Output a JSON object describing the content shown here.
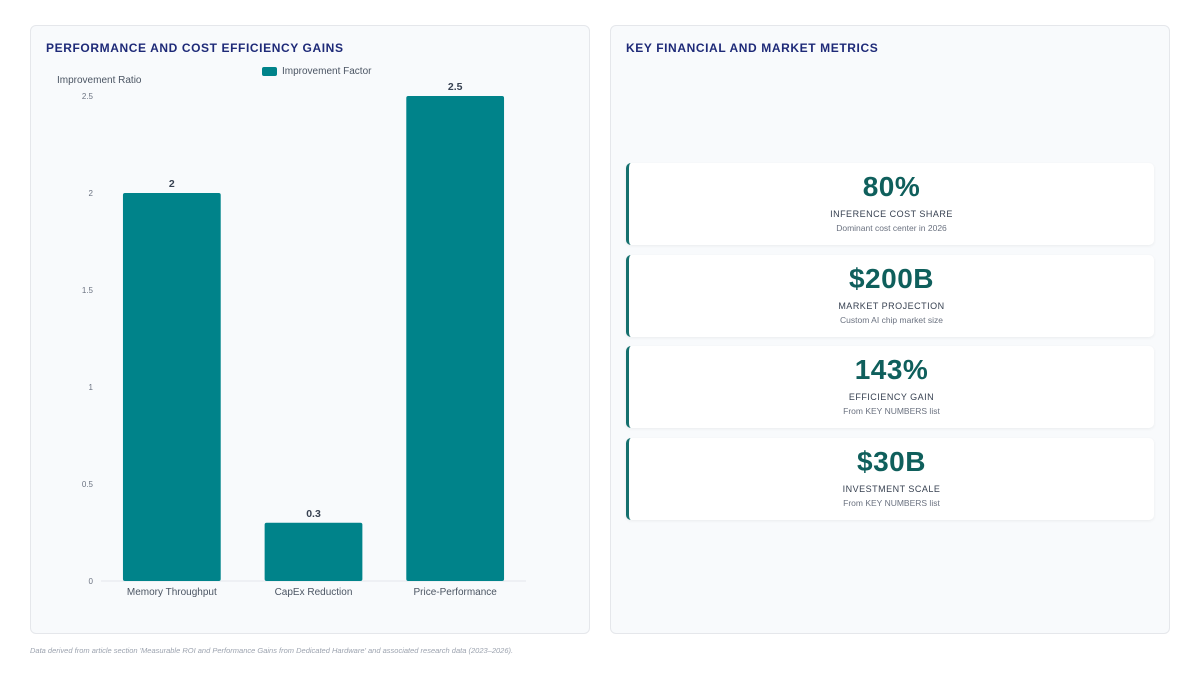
{
  "chart_panel": {
    "title": "PERFORMANCE AND COST EFFICIENCY GAINS"
  },
  "metrics_panel": {
    "title": "KEY FINANCIAL AND MARKET METRICS",
    "cards": [
      {
        "value": "80%",
        "label": "INFERENCE COST SHARE",
        "sub": "Dominant cost center in 2026"
      },
      {
        "value": "$200B",
        "label": "MARKET PROJECTION",
        "sub": "Custom AI chip market size"
      },
      {
        "value": "143%",
        "label": "EFFICIENCY GAIN",
        "sub": "From KEY NUMBERS list"
      },
      {
        "value": "$30B",
        "label": "INVESTMENT SCALE",
        "sub": "From KEY NUMBERS list"
      }
    ]
  },
  "chart_data": {
    "type": "bar",
    "title": "PERFORMANCE AND COST EFFICIENCY GAINS",
    "categories": [
      "Memory Throughput",
      "CapEx Reduction",
      "Price-Performance"
    ],
    "series": [
      {
        "name": "Improvement Factor",
        "values": [
          2,
          0.3,
          2.5
        ]
      }
    ],
    "data_labels": [
      "2",
      "0.3",
      "2.5"
    ],
    "ylabel": "Improvement Ratio",
    "xlabel": "",
    "ylim": [
      0,
      2.5
    ],
    "yticks": [
      "0",
      "0.5",
      "1",
      "1.5",
      "2",
      "2.5"
    ],
    "grid": false,
    "legend_position": "top",
    "bar_color": "#00838a"
  },
  "footnote": "Data derived from article section 'Measurable ROI and Performance Gains from Dedicated Hardware' and associated research data (2023–2026)."
}
